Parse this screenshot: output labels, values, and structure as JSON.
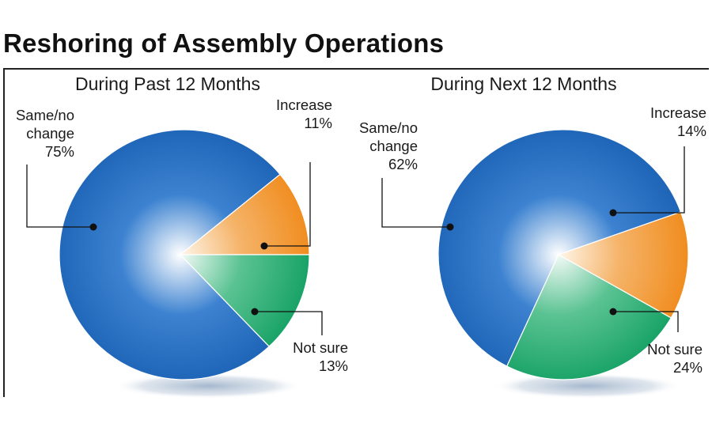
{
  "title": "Reshoring of Assembly Operations",
  "chart_data": [
    {
      "type": "pie",
      "title": "During Past 12 Months",
      "slices": [
        {
          "label_lines": [
            "Same/no",
            "change"
          ],
          "value_text": "75%",
          "value": 75,
          "color": "#1f6dc1"
        },
        {
          "label_lines": [
            "Increase"
          ],
          "value_text": "11%",
          "value": 11,
          "color": "#f0921f"
        },
        {
          "label_lines": [
            "Not sure"
          ],
          "value_text": "13%",
          "value": 13,
          "color": "#1aa86a"
        }
      ]
    },
    {
      "type": "pie",
      "title": "During Next 12 Months",
      "slices": [
        {
          "label_lines": [
            "Same/no",
            "change"
          ],
          "value_text": "62%",
          "value": 62,
          "color": "#1f6dc1"
        },
        {
          "label_lines": [
            "Increase"
          ],
          "value_text": "14%",
          "value": 14,
          "color": "#f0921f"
        },
        {
          "label_lines": [
            "Not sure"
          ],
          "value_text": "24%",
          "value": 24,
          "color": "#1aa86a"
        }
      ]
    }
  ]
}
